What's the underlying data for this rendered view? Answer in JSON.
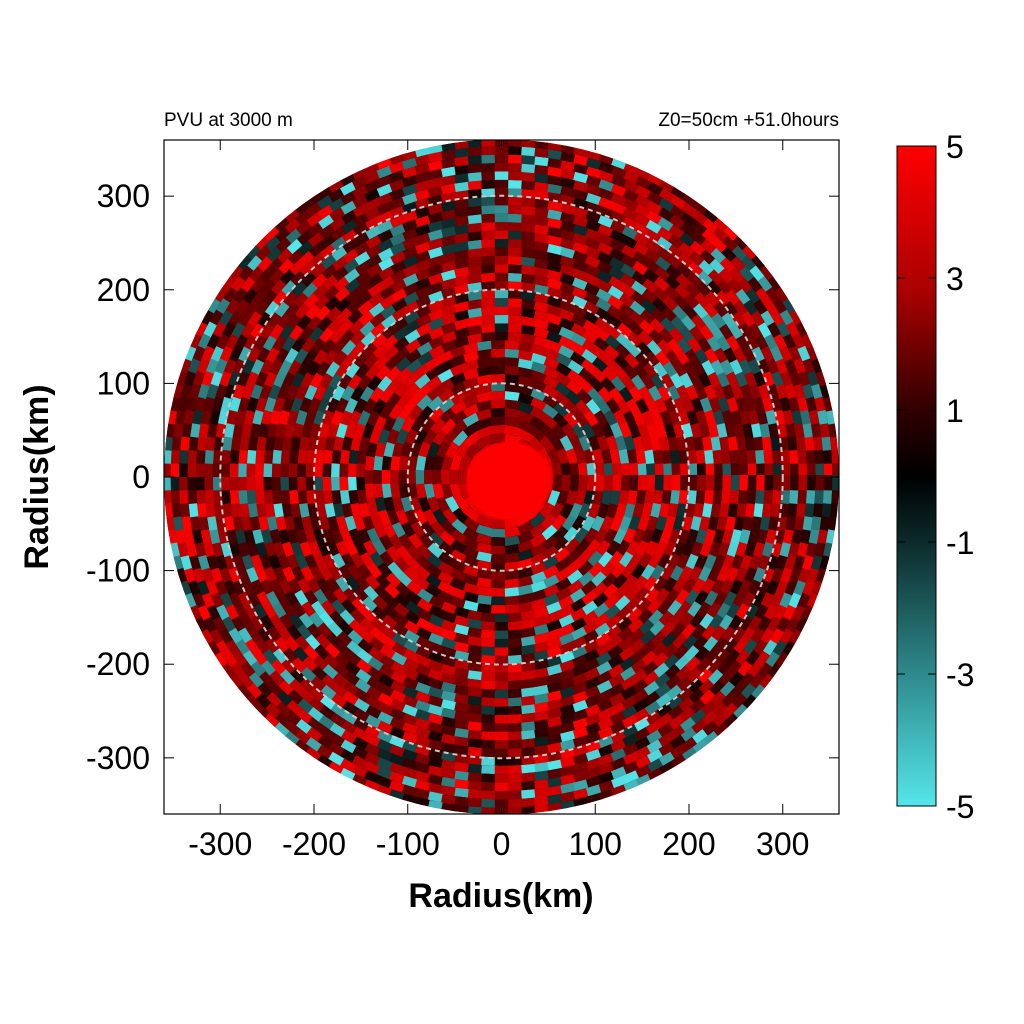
{
  "chart_data": {
    "type": "heatmap",
    "title_left": "PVU at  3000 m",
    "title_right": "Z0=50cm  +51.0hours",
    "xlabel": "Radius(km)",
    "ylabel": "Radius(km)",
    "xlim": [
      -360,
      360
    ],
    "ylim": [
      -360,
      360
    ],
    "xticks": [
      -300,
      -200,
      -100,
      0,
      100,
      200,
      300
    ],
    "yticks": [
      300,
      200,
      100,
      0,
      -100,
      -200,
      -300
    ],
    "domain_radius": 360,
    "dashed_circles": [
      100,
      200,
      300
    ],
    "colorbar": {
      "min": -5,
      "max": 5,
      "tick_labels": [
        "5",
        "3",
        "1",
        "-1",
        "-3",
        "-5"
      ],
      "tick_values": [
        5,
        3,
        1,
        -1,
        -3,
        -5
      ],
      "colors": {
        "low": "#55e6ea",
        "mid": "#000000",
        "high": "#ff0000"
      }
    },
    "field_description_values": {
      "core_radius_km": 40,
      "core_value": 5
    }
  }
}
